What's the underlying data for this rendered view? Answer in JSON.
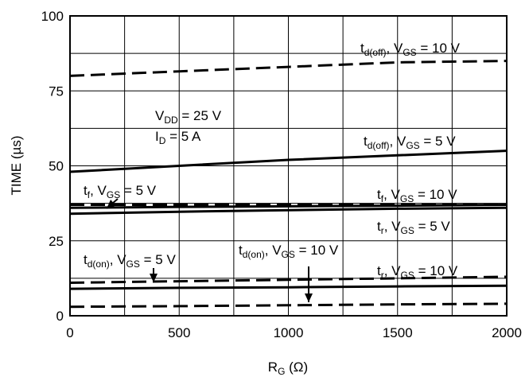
{
  "chart_data": {
    "type": "line",
    "xlabel": "R",
    "xlabel_sub": "G",
    "xlabel_unit": " (Ω)",
    "ylabel": "TIME (µs)",
    "xlim": [
      0,
      2000
    ],
    "ylim": [
      0,
      100
    ],
    "x_ticks": [
      "0",
      "500",
      "1000",
      "1500",
      "2000"
    ],
    "y_ticks": [
      "0",
      "25",
      "50",
      "75",
      "100"
    ],
    "grid": true,
    "conditions": [
      {
        "main": "V",
        "sub": "DD",
        "rest": " = 25 V"
      },
      {
        "main": "I",
        "sub": "D",
        "rest": " = 5 A"
      }
    ],
    "series": [
      {
        "name": "td(off), VGS = 10 V",
        "style": "dashed",
        "x": [
          0,
          500,
          1000,
          1500,
          2000
        ],
        "y": [
          80,
          81.5,
          83,
          84.5,
          85
        ]
      },
      {
        "name": "td(off), VGS = 5 V",
        "style": "solid",
        "x": [
          0,
          500,
          1000,
          1500,
          2000
        ],
        "y": [
          48,
          50,
          52,
          53.5,
          55
        ]
      },
      {
        "name": "tf, VGS = 5 V",
        "style": "dashed",
        "x": [
          0,
          500,
          1000,
          1500,
          2000
        ],
        "y": [
          37,
          37,
          37,
          37,
          37
        ]
      },
      {
        "name": "tf, VGS = 10 V",
        "style": "solid",
        "x": [
          0,
          500,
          1000,
          1500,
          2000
        ],
        "y": [
          36,
          36.3,
          36.5,
          36.7,
          37
        ]
      },
      {
        "name": "tr, VGS = 5 V",
        "style": "solid",
        "x": [
          0,
          500,
          1000,
          1500,
          2000
        ],
        "y": [
          34,
          34.7,
          35.2,
          35.7,
          36
        ]
      },
      {
        "name": "td(on), VGS = 5 V",
        "style": "dashed",
        "x": [
          0,
          500,
          1000,
          1500,
          2000
        ],
        "y": [
          11,
          11.5,
          12,
          12.5,
          13
        ]
      },
      {
        "name": "td(on), VGS = 10 V",
        "style": "solid",
        "x": [
          0,
          500,
          1000,
          1500,
          2000
        ],
        "y": [
          9,
          9.3,
          9.5,
          9.8,
          10
        ]
      },
      {
        "name": "tr, VGS = 10 V",
        "style": "dashed",
        "x": [
          0,
          500,
          1000,
          1500,
          2000
        ],
        "y": [
          3,
          3.2,
          3.5,
          3.8,
          4
        ]
      }
    ],
    "annotations": [
      {
        "main": "t",
        "sub": "d(off)",
        "rest": ", V",
        "sub2": "GS",
        "rest2": " = 10 V"
      },
      {
        "main": "t",
        "sub": "d(off)",
        "rest": ", V",
        "sub2": "GS",
        "rest2": " = 5 V"
      },
      {
        "main": "t",
        "sub": "f",
        "rest": ", V",
        "sub2": "GS",
        "rest2": " = 5 V"
      },
      {
        "main": "t",
        "sub": "f",
        "rest": ", V",
        "sub2": "GS",
        "rest2": " = 10 V"
      },
      {
        "main": "t",
        "sub": "r",
        "rest": ", V",
        "sub2": "GS",
        "rest2": " = 5 V"
      },
      {
        "main": "t",
        "sub": "d(on)",
        "rest": ", V",
        "sub2": "GS",
        "rest2": " = 5 V"
      },
      {
        "main": "t",
        "sub": "d(on)",
        "rest": ", V",
        "sub2": "GS",
        "rest2": " = 10 V"
      },
      {
        "main": "t",
        "sub": "r",
        "rest": ", V",
        "sub2": "GS",
        "rest2": " = 10 V"
      }
    ]
  }
}
